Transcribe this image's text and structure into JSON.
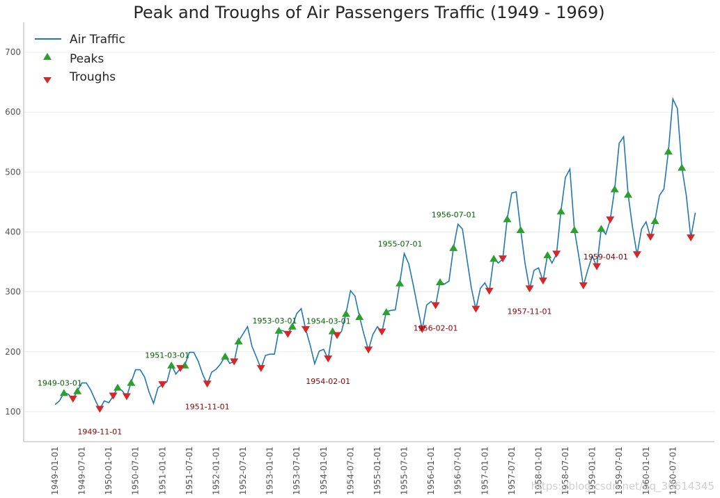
{
  "chart_data": {
    "type": "line",
    "title": "Peak and Troughs of Air Passengers Traffic (1949 - 1969)",
    "xlabel": "",
    "ylabel": "",
    "ylim": [
      50,
      750
    ],
    "y_ticks": [
      100,
      200,
      300,
      400,
      500,
      600,
      700
    ],
    "x_tick_labels": [
      "1949-01-01",
      "1949-07-01",
      "1950-01-01",
      "1950-07-01",
      "1951-01-01",
      "1951-07-01",
      "1952-01-01",
      "1952-07-01",
      "1953-01-01",
      "1953-07-01",
      "1954-01-01",
      "1954-07-01",
      "1955-01-01",
      "1955-07-01",
      "1956-01-01",
      "1956-07-01",
      "1957-01-01",
      "1957-07-01",
      "1958-01-01",
      "1958-07-01",
      "1959-01-01",
      "1959-07-01",
      "1960-01-01",
      "1960-07-01"
    ],
    "grid": "horizontal",
    "legend_position": "top-left",
    "colors": {
      "line": "#1f77b4",
      "peaks": "#2ca02c",
      "troughs": "#d62728",
      "peak_text": "#006400",
      "trough_text": "#8b0000",
      "axis": "#b0b0b0",
      "grid": "#ebebeb"
    },
    "series": [
      {
        "name": "Air Traffic",
        "start": "1949-01-01",
        "frequency": "monthly",
        "values": [
          112,
          118,
          132,
          129,
          121,
          135,
          148,
          148,
          136,
          119,
          104,
          118,
          115,
          126,
          141,
          135,
          125,
          149,
          170,
          170,
          158,
          133,
          114,
          140,
          145,
          150,
          178,
          163,
          172,
          178,
          199,
          199,
          184,
          162,
          146,
          166,
          171,
          180,
          193,
          181,
          183,
          218,
          230,
          242,
          209,
          191,
          172,
          194,
          196,
          196,
          236,
          235,
          229,
          243,
          264,
          272,
          237,
          211,
          180,
          201,
          204,
          188,
          235,
          227,
          234,
          264,
          302,
          293,
          259,
          229,
          203,
          229,
          242,
          233,
          267,
          269,
          270,
          315,
          364,
          347,
          312,
          274,
          237,
          278,
          284,
          277,
          317,
          313,
          318,
          374,
          413,
          405,
          355,
          306,
          271,
          306,
          315,
          301,
          356,
          348,
          355,
          422,
          465,
          467,
          404,
          347,
          305,
          336,
          340,
          318,
          362,
          348,
          363,
          435,
          491,
          505,
          404,
          359,
          310,
          337,
          360,
          342,
          406,
          396,
          420,
          472,
          548,
          559,
          463,
          407,
          362,
          405,
          417,
          391,
          419,
          461,
          472,
          535,
          622,
          606,
          508,
          461,
          390,
          432
        ]
      }
    ],
    "markers": {
      "peaks_label": "Peaks",
      "troughs_label": "Troughs",
      "peak_indices": [
        2,
        5,
        14,
        17,
        26,
        29,
        38,
        41,
        50,
        53,
        62,
        65,
        68,
        74,
        77,
        86,
        89,
        98,
        101,
        104,
        110,
        113,
        116,
        122,
        125,
        128,
        134,
        137,
        140
      ],
      "trough_indices": [
        4,
        10,
        13,
        16,
        24,
        28,
        34,
        40,
        46,
        52,
        56,
        61,
        63,
        70,
        73,
        82,
        85,
        94,
        97,
        100,
        106,
        109,
        112,
        118,
        121,
        124,
        130,
        133,
        142
      ]
    },
    "annotations": {
      "peaks": [
        {
          "label": "1949-03-01",
          "index": 2,
          "value": 132
        },
        {
          "label": "1951-03-01",
          "index": 26,
          "value": 178
        },
        {
          "label": "1953-03-01",
          "index": 50,
          "value": 236
        },
        {
          "label": "1954-03-01",
          "index": 62,
          "value": 235
        },
        {
          "label": "1955-07-01",
          "index": 78,
          "value": 364
        },
        {
          "label": "1956-07-01",
          "index": 90,
          "value": 413
        }
      ],
      "troughs": [
        {
          "label": "1949-11-01",
          "index": 10,
          "value": 104
        },
        {
          "label": "1951-11-01",
          "index": 34,
          "value": 146
        },
        {
          "label": "1954-02-01",
          "index": 61,
          "value": 188
        },
        {
          "label": "1956-02-01",
          "index": 85,
          "value": 277
        },
        {
          "label": "1957-11-01",
          "index": 106,
          "value": 305
        },
        {
          "label": "1959-04-01",
          "index": 123,
          "value": 396
        }
      ]
    }
  },
  "watermark": "https://blog.csdn.net/qq_30614345"
}
